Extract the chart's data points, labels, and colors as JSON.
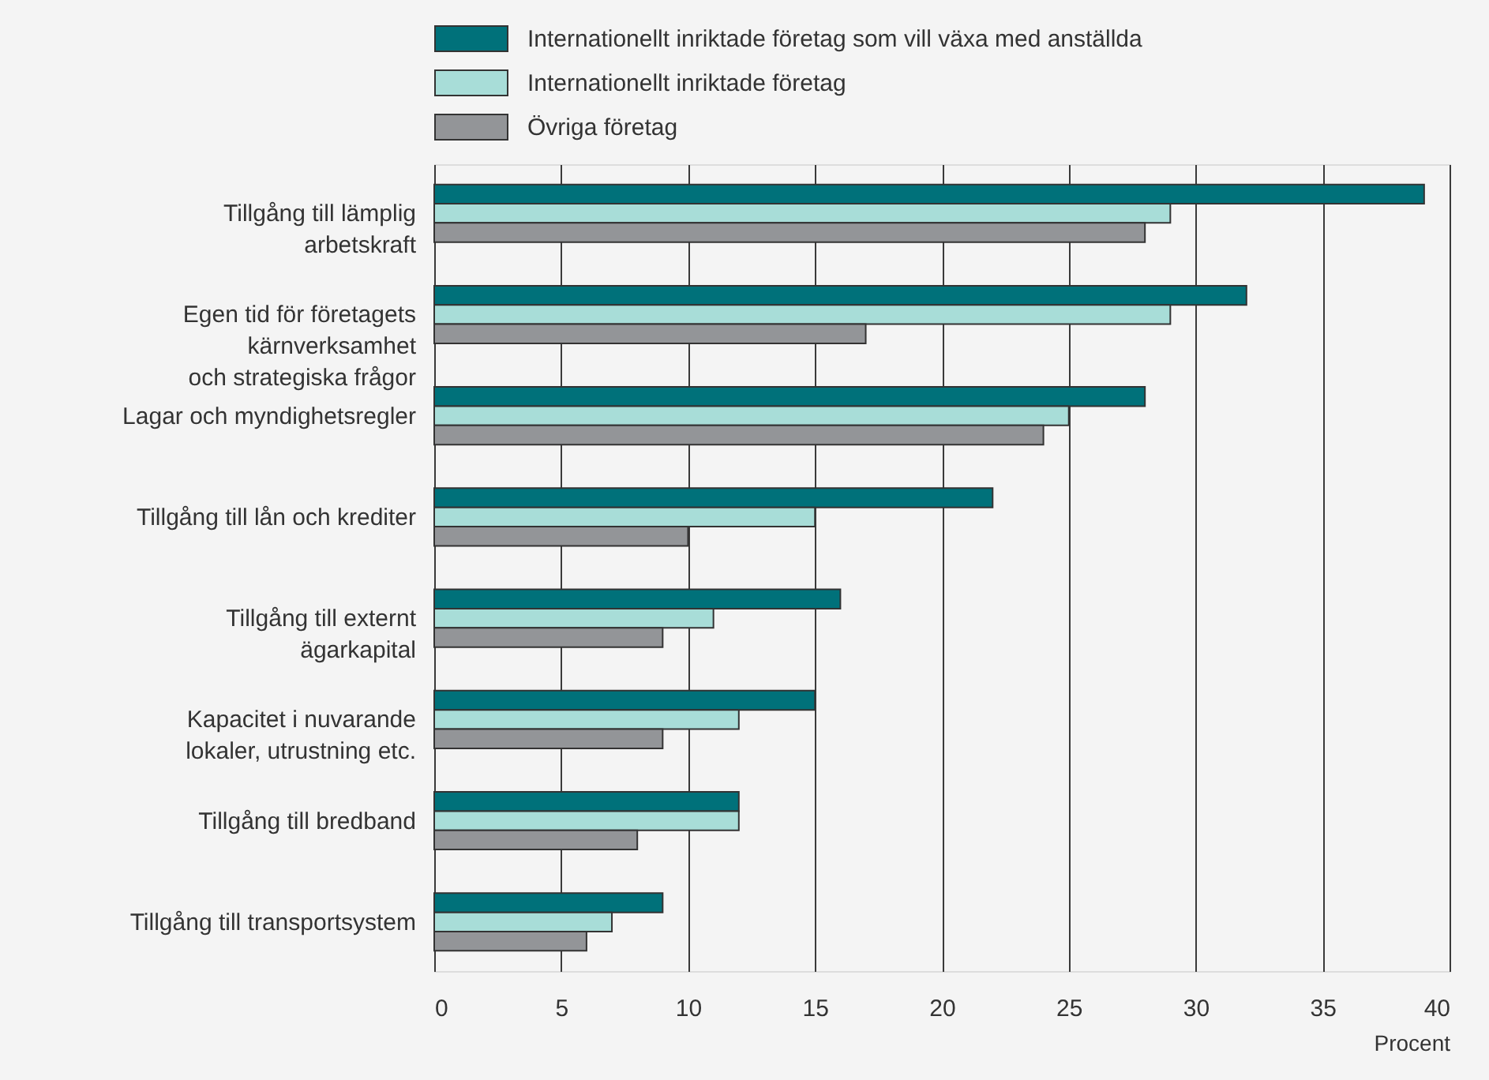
{
  "chart_data": {
    "type": "bar",
    "orientation": "horizontal",
    "categories": [
      "Tillgång till lämplig\narbetskraft",
      "Egen tid för företagets\nkärnverksamhet\noch strategiska frågor",
      "Lagar och myndighetsregler",
      "Tillgång till lån och krediter",
      "Tillgång till externt\nägarkapital",
      "Kapacitet i nuvarande\nlokaler, utrustning etc.",
      "Tillgång till bredband",
      "Tillgång till transportsystem"
    ],
    "series": [
      {
        "name": "Internationellt inriktade företag som vill växa med anställda",
        "color": "#00717a",
        "values": [
          39,
          32,
          28,
          22,
          16,
          15,
          12,
          9
        ]
      },
      {
        "name": "Internationellt inriktade företag",
        "color": "#a8ddd8",
        "values": [
          29,
          29,
          25,
          15,
          11,
          12,
          12,
          7
        ]
      },
      {
        "name": "Övriga företag",
        "color": "#939598",
        "values": [
          28,
          17,
          24,
          10,
          9,
          9,
          8,
          6
        ]
      }
    ],
    "xlim": [
      0,
      40
    ],
    "xticks": [
      0,
      5,
      10,
      15,
      20,
      25,
      30,
      35,
      40
    ],
    "xlabel": "Procent",
    "grid": "x",
    "legend": "top"
  }
}
